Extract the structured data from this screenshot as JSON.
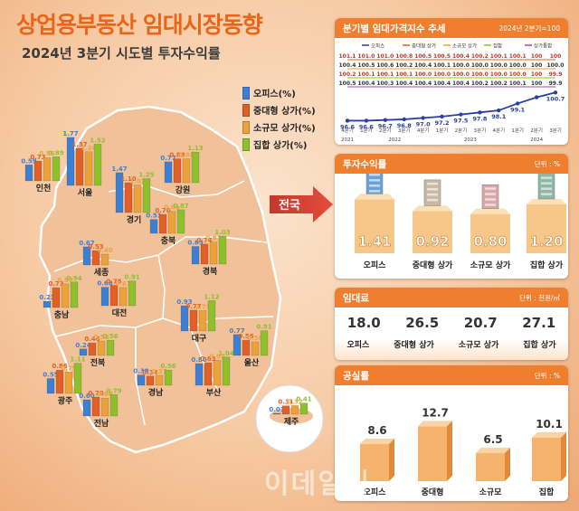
{
  "header": {
    "title": "상업용부동산 임대시장동향",
    "subtitle": "2024년 3분기 시도별 투자수익률"
  },
  "legend": [
    {
      "label": "오피스(%)",
      "color": "#3f7fd1"
    },
    {
      "label": "중대형 상가(%)",
      "color": "#e0602a"
    },
    {
      "label": "소규모 상가(%)",
      "color": "#e9a33a"
    },
    {
      "label": "집합 상가(%)",
      "color": "#8fbf2d"
    }
  ],
  "callout": "전국",
  "watermark": "이데일리",
  "colors": {
    "accent": "#ef7f2f",
    "title": "#e8661a",
    "map": "#f1c19a",
    "line_blue": "#2a3fa0"
  },
  "chart_data": [
    {
      "type": "bar",
      "title": "2024년 3분기 시도별 투자수익률",
      "series_names": [
        "오피스(%)",
        "중대형 상가(%)",
        "소규모 상가(%)",
        "집합 상가(%)"
      ],
      "regions": [
        {
          "name": "인천",
          "values": [
            0.59,
            0.73,
            0.86,
            0.89
          ]
        },
        {
          "name": "서울",
          "values": [
            1.77,
            1.37,
            1.24,
            1.52
          ]
        },
        {
          "name": "경기",
          "values": [
            1.47,
            1.1,
            1.01,
            1.25
          ]
        },
        {
          "name": "강원",
          "values": [
            0.77,
            0.88,
            0.88,
            1.13
          ]
        },
        {
          "name": "충북",
          "values": [
            0.51,
            0.7,
            0.81,
            0.87
          ]
        },
        {
          "name": "세종",
          "values": [
            0.67,
            0.53,
            0.4,
            null
          ]
        },
        {
          "name": "경북",
          "values": [
            0.65,
            0.74,
            0.81,
            1.03
          ]
        },
        {
          "name": "충남",
          "values": [
            0.23,
            0.73,
            0.87,
            0.94
          ]
        },
        {
          "name": "대전",
          "values": [
            0.68,
            0.75,
            0.67,
            0.91
          ]
        },
        {
          "name": "대구",
          "values": [
            0.93,
            0.77,
            0.75,
            1.12
          ]
        },
        {
          "name": "전북",
          "values": [
            0.24,
            0.46,
            0.53,
            0.56
          ]
        },
        {
          "name": "울산",
          "values": [
            0.77,
            0.56,
            0.5,
            0.91
          ]
        },
        {
          "name": "광주",
          "values": [
            0.55,
            0.86,
            0.79,
            1.11
          ]
        },
        {
          "name": "경남",
          "values": [
            0.38,
            0.34,
            0.37,
            0.56
          ]
        },
        {
          "name": "부산",
          "values": [
            0.8,
            0.83,
            0.92,
            1.04
          ]
        },
        {
          "name": "전남",
          "values": [
            0.6,
            0.7,
            0.66,
            0.79
          ]
        },
        {
          "name": "제주",
          "values": [
            0.01,
            0.31,
            0.32,
            0.41
          ]
        }
      ]
    },
    {
      "type": "line",
      "title": "분기별 임대가격지수 추세",
      "note": "2024년 2분기=100",
      "series_names": [
        "오피스",
        "중대형 상가",
        "소규모 상가",
        "집합",
        "상가통합"
      ],
      "x": [
        "4분기",
        "1분기",
        "2분기",
        "3분기",
        "4분기",
        "1분기",
        "2분기",
        "3분기",
        "4분기",
        "1분기",
        "2분기",
        "3분기"
      ],
      "years": [
        "2021",
        "2022",
        "2023",
        "2024"
      ],
      "office": [
        96.6,
        96.6,
        96.7,
        96.8,
        97.0,
        97.2,
        97.5,
        97.8,
        98.1,
        99.1,
        100,
        100.7
      ],
      "office_labels": [
        "96.6",
        "96.6",
        "96.7",
        "96.8",
        "97.0",
        "97.2",
        "97.5",
        "97.8",
        "98.1",
        "99.1",
        "",
        "100.7"
      ],
      "upper_label_rows": [
        [
          "101.1",
          "101.0",
          "101.0",
          "100.8",
          "100.5",
          "100.5",
          "100.4",
          "100.2",
          "100.1",
          "100.1",
          "100",
          "100"
        ],
        [
          "100.4",
          "100.5",
          "100.6",
          "100.2",
          "100.4",
          "100.1",
          "100.0",
          "100.0",
          "100.0",
          "100.0",
          "100",
          "100.0"
        ],
        [
          "100.2",
          "100.1",
          "100.1",
          "100.1",
          "100.0",
          "100.0",
          "100.0",
          "100.0",
          "100.0",
          "100.0",
          "100",
          "99.9"
        ],
        [
          "100.5",
          "100.4",
          "100.3",
          "100.4",
          "100.4",
          "100.4",
          "100.4",
          "100.2",
          "100.2",
          "100.1",
          "100",
          "99.9"
        ]
      ]
    },
    {
      "type": "bar",
      "title": "투자수익률",
      "unit": "단위 : %",
      "categories": [
        "오피스",
        "중대형 상가",
        "소규모 상가",
        "집합 상가"
      ],
      "values": [
        1.41,
        0.92,
        0.8,
        1.2
      ]
    },
    {
      "type": "table",
      "title": "임대료",
      "unit": "단위 : 천원/㎡",
      "categories": [
        "오피스",
        "중대형 상가",
        "소규모 상가",
        "집합 상가"
      ],
      "values": [
        18.0,
        26.5,
        20.7,
        27.1
      ]
    },
    {
      "type": "bar",
      "title": "공실률",
      "unit": "단위 : %",
      "categories": [
        "오피스",
        "중대형",
        "소규모",
        "집합"
      ],
      "values": [
        8.6,
        12.7,
        6.5,
        10.1
      ]
    }
  ]
}
